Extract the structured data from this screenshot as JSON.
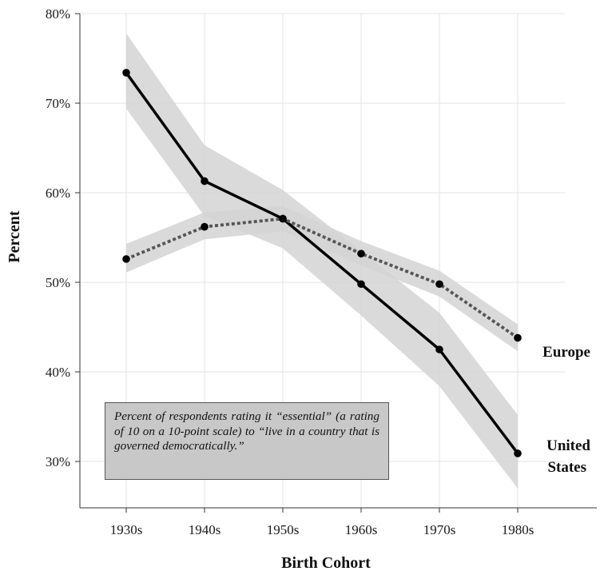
{
  "chart_data": {
    "type": "line",
    "xlabel": "Birth Cohort",
    "ylabel": "Percent",
    "categories": [
      "1930s",
      "1940s",
      "1950s",
      "1960s",
      "1970s",
      "1980s"
    ],
    "ylim": [
      30,
      80
    ],
    "yticks": [
      "30%",
      "40%",
      "50%",
      "60%",
      "70%",
      "80%"
    ],
    "grid": true,
    "series": [
      {
        "name": "United States",
        "line_style": "solid",
        "color": "#000000",
        "values": [
          73.4,
          61.3,
          57.1,
          49.8,
          42.5,
          30.9
        ],
        "lower": [
          69.4,
          57.4,
          53.8,
          46.3,
          38.4,
          27.0
        ],
        "upper": [
          77.8,
          65.3,
          60.3,
          53.5,
          46.6,
          35.2
        ]
      },
      {
        "name": "Europe",
        "line_style": "dotted",
        "color": "#555555",
        "values": [
          52.6,
          56.2,
          57.1,
          53.2,
          49.8,
          43.8
        ],
        "lower": [
          51.1,
          54.8,
          55.7,
          51.9,
          48.4,
          42.3
        ],
        "upper": [
          54.3,
          57.8,
          58.5,
          54.6,
          51.3,
          45.3
        ]
      }
    ],
    "series_labels": {
      "europe": "Europe",
      "us_line1": "United",
      "us_line2": "States"
    },
    "annotation": "Percent of respondents rating it “essential” (a rating of 10 on a 10-point scale) to “live in a country that is governed democratically.”",
    "band_color": "#d3d3d3"
  }
}
